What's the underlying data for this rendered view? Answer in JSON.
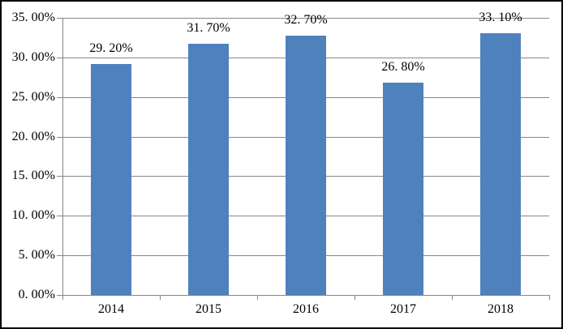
{
  "chart_data": {
    "type": "bar",
    "title": "",
    "xlabel": "",
    "ylabel": "",
    "categories": [
      "2014",
      "2015",
      "2016",
      "2017",
      "2018"
    ],
    "series": [
      {
        "name": "",
        "values": [
          29.2,
          31.7,
          32.7,
          26.8,
          33.1
        ]
      }
    ],
    "value_labels": [
      "29. 20%",
      "31. 70%",
      "32. 70%",
      "26. 80%",
      "33. 10%"
    ],
    "y_tick_values": [
      0,
      5,
      10,
      15,
      20,
      25,
      30,
      35
    ],
    "y_tick_labels": [
      "0. 00%",
      "5. 00%",
      "10. 00%",
      "15. 00%",
      "20. 00%",
      "25. 00%",
      "30. 00%",
      "35. 00%"
    ],
    "ylim": [
      0,
      35
    ],
    "grid": "horizontal",
    "legend_position": "none",
    "bar_color": "#4F81BD"
  },
  "colors": {
    "bar": "#4F81BD",
    "gridline": "#878787",
    "axis": "#878787",
    "text": "#000000",
    "frame_border": "#000000",
    "background": "#FFFFFF"
  }
}
